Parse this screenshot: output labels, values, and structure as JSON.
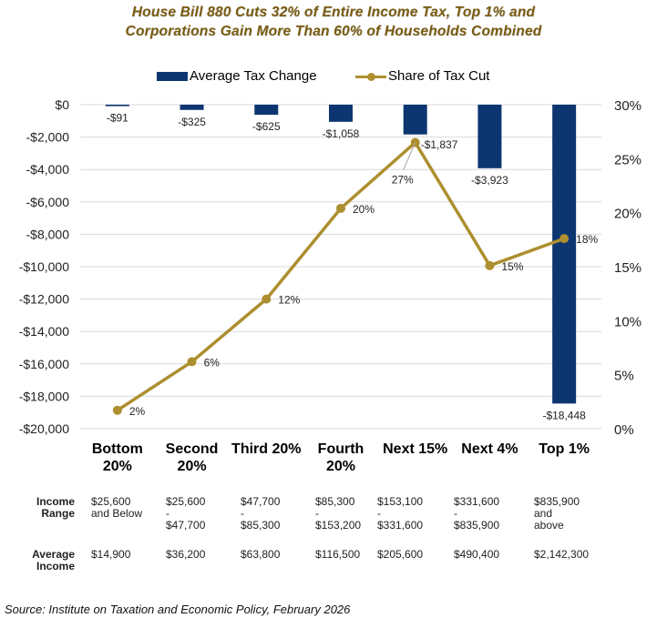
{
  "chart_data": {
    "type": "bar",
    "title": "House Bill 880 Cuts 32% of Entire Income Tax, Top 1% and Corporations Gain More Than 60% of Households Combined",
    "title_lines": [
      "House Bill 880 Cuts 32% of Entire Income Tax, Top 1% and",
      "Corporations Gain More Than 60% of Households Combined"
    ],
    "categories": [
      "Bottom 20%",
      "Second 20%",
      "Third 20%",
      "Fourth 20%",
      "Next 15%",
      "Next 4%",
      "Top 1%"
    ],
    "category_lines": [
      [
        "Bottom",
        "20%"
      ],
      [
        "Second",
        "20%"
      ],
      [
        "Third 20%"
      ],
      [
        "Fourth",
        "20%"
      ],
      [
        "Next 15%"
      ],
      [
        "Next 4%"
      ],
      [
        "Top 1%"
      ]
    ],
    "series": [
      {
        "name": "Average Tax Change",
        "type": "bar",
        "axis": "left",
        "color": "#0d3670",
        "values": [
          -91,
          -325,
          -625,
          -1058,
          -1837,
          -3923,
          -18448
        ],
        "labels": [
          "-$91",
          "-$325",
          "-$625",
          "-$1,058",
          "-$1,837",
          "-$3,923",
          "-$18,448"
        ]
      },
      {
        "name": "Share of Tax Cut",
        "type": "line",
        "axis": "right",
        "color": "#ad8f2f",
        "values": [
          1.7,
          6.2,
          12.0,
          20.4,
          26.5,
          15.1,
          17.6
        ],
        "labels": [
          "2%",
          "6%",
          "12%",
          "20%",
          "27%",
          "15%",
          "18%"
        ]
      }
    ],
    "y_left": {
      "min": -20000,
      "max": 0,
      "step": 2000,
      "ticks": [
        "$0",
        "-$2,000",
        "-$4,000",
        "-$6,000",
        "-$8,000",
        "-$10,000",
        "-$12,000",
        "-$14,000",
        "-$16,000",
        "-$18,000",
        "-$20,000"
      ]
    },
    "y_right": {
      "min": 0,
      "max": 30,
      "step": 5,
      "ticks": [
        "30%",
        "25%",
        "20%",
        "15%",
        "10%",
        "5%",
        "0%"
      ]
    },
    "xlabel": "",
    "ylabel": "",
    "grid": true,
    "legend": {
      "position": "top-center",
      "entries": [
        "Average Tax Change",
        "Share of Tax Cut"
      ]
    }
  },
  "table": {
    "rows": [
      {
        "label_lines": [
          "Income",
          "Range"
        ],
        "cells": [
          "$25,600\nand Below",
          "$25,600\n-\n$47,700",
          "$47,700\n-\n$85,300",
          "$85,300\n-\n$153,200",
          "$153,100\n-\n$331,600",
          "$331,600\n-\n$835,900",
          "$835,900\nand\nabove"
        ]
      },
      {
        "label_lines": [
          "Average",
          "Income"
        ],
        "cells": [
          "$14,900",
          "$36,200",
          "$63,800",
          "$116,500",
          "$205,600",
          "$490,400",
          "$2,142,300"
        ]
      }
    ]
  },
  "source": "Source: Institute on Taxation and Economic Policy, February 2026"
}
